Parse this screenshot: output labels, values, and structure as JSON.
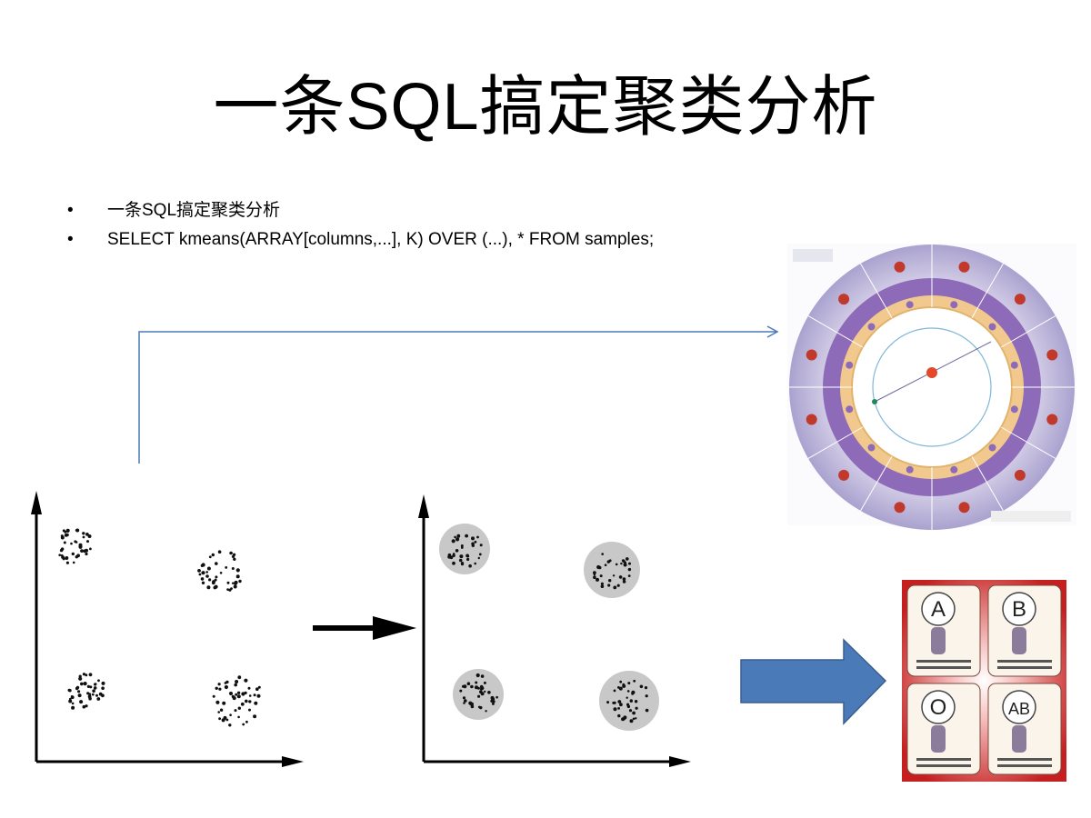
{
  "slide": {
    "title": "一条SQL搞定聚类分析",
    "bullets": [
      {
        "marker": "•",
        "text": "一条SQL搞定聚类分析"
      },
      {
        "marker": "•",
        "text": "SELECT kmeans(ARRAY[columns,...], K) OVER (...), * FROM samples;"
      }
    ]
  },
  "colors": {
    "connector_line": "#4a7ab8",
    "block_arrow_fill": "#4a7ab8",
    "block_arrow_stroke": "#3a5f8e",
    "cluster_highlight": "#c8c8c8",
    "zodiac_outer": "#b9b3d6",
    "zodiac_purple": "#8e6bb8",
    "zodiac_orange": "#f1c98e",
    "bloodtype_red": "#d12e2e"
  },
  "figures": {
    "clusters_raw": {
      "name": "unlabeled-scatter"
    },
    "clusters_grouped": {
      "name": "clustered-scatter"
    },
    "zodiac_wheel": {
      "icon": "zodiac-wheel-image"
    },
    "blood_types": {
      "icon": "blood-type-cards-image",
      "cards": [
        "A",
        "B",
        "O",
        "AB"
      ]
    }
  }
}
